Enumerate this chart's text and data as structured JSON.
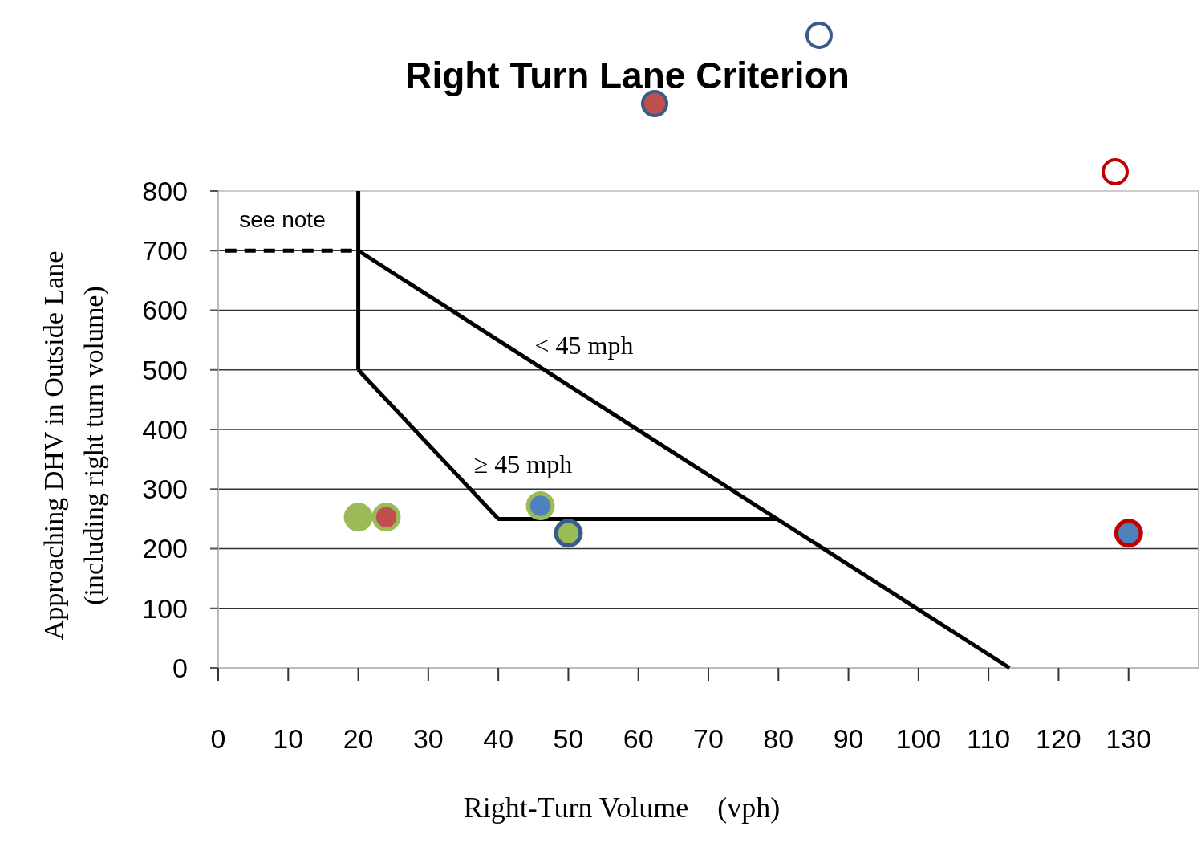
{
  "chart_data": {
    "type": "bubble",
    "title": "Right Turn Lane Criterion",
    "xlabel": "Right-Turn Volume    (vph)",
    "ylabel": "Approaching DHV in Outside Lane\n(including right turn volume)",
    "xlim": [
      0,
      140
    ],
    "xticks": [
      0,
      10,
      20,
      30,
      40,
      50,
      60,
      70,
      80,
      90,
      100,
      110,
      120,
      130
    ],
    "ylim": [
      0,
      800
    ],
    "yticks": [
      0,
      100,
      200,
      300,
      400,
      500,
      600,
      700,
      800
    ],
    "grid": "y",
    "series": [
      {
        "type": "line",
        "x": [
          1,
          20
        ],
        "values": [
          700,
          700
        ],
        "color": "#000000",
        "line_style": "dashed"
      },
      {
        "type": "line",
        "x": [
          20,
          20
        ],
        "values": [
          800,
          500
        ],
        "color": "#000000",
        "line_style": "solid"
      },
      {
        "type": "line",
        "x": [
          20,
          113
        ],
        "values": [
          700,
          0
        ],
        "color": "#000000",
        "line_style": "solid"
      },
      {
        "type": "line",
        "x": [
          20,
          40,
          80
        ],
        "values": [
          500,
          250,
          250
        ],
        "color": "#000000",
        "line_style": "solid"
      },
      {
        "x": [
          24,
          46,
          50,
          130
        ],
        "values": [
          253,
          272,
          226,
          226
        ],
        "sizes": [
          1,
          1,
          1,
          1
        ],
        "colors": [
          "#9bbb59",
          "#9bbb59",
          "#385d8a",
          "#c00000"
        ],
        "marker": "circle"
      },
      {
        "x": [
          20,
          24,
          46,
          50,
          130
        ],
        "values": [
          253,
          253,
          272,
          226,
          226
        ],
        "sizes": [
          1,
          0.5,
          0.5,
          0.5,
          0.5
        ],
        "colors": [
          "#9bbb59",
          "#c0504d",
          "#4f81bd",
          "#9bbb59",
          "#4f81bd"
        ],
        "marker": "circle"
      }
    ],
    "annotations": [
      "see note",
      "< 45 mph",
      "≥ 45 mph"
    ]
  }
}
